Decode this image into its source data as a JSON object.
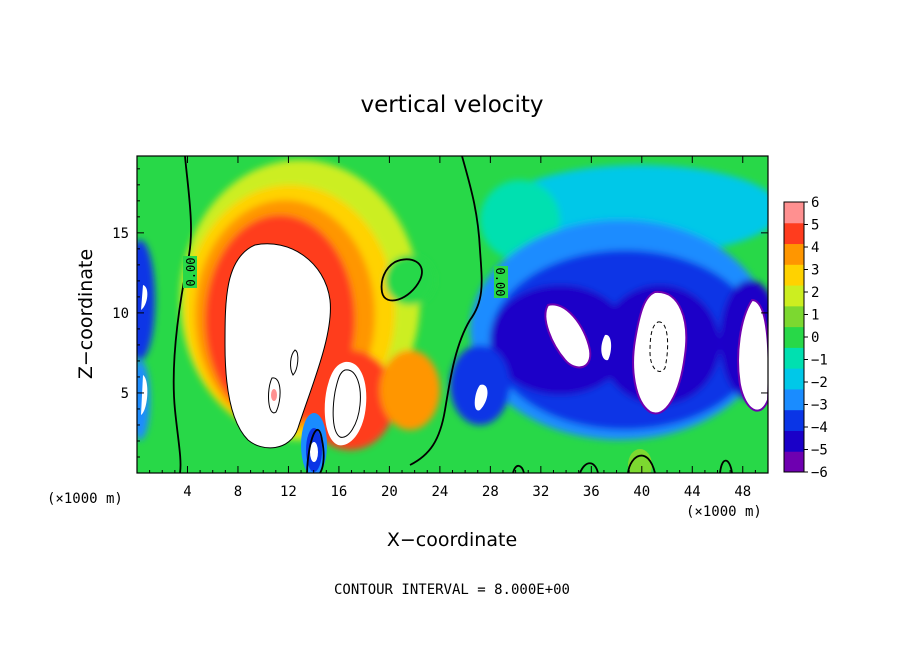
{
  "chart_data": {
    "type": "heatmap",
    "title": "vertical velocity",
    "xlabel": "X−coordinate",
    "ylabel": "Z−coordinate",
    "x_unit_label_left": "(×1000 m)",
    "x_unit_label_right": "(×1000 m)",
    "x_ticks": [
      4,
      8,
      12,
      16,
      20,
      24,
      28,
      32,
      36,
      40,
      44,
      48
    ],
    "y_ticks": [
      5,
      10,
      15
    ],
    "xlim": [
      0,
      50
    ],
    "ylim": [
      0,
      19.8
    ],
    "colorbar": {
      "levels": [
        -6,
        -5,
        -4,
        -3,
        -2,
        -1,
        0,
        1,
        2,
        3,
        4,
        5,
        6
      ],
      "labels": [
        "6",
        "5",
        "4",
        "3",
        "2",
        "1",
        "0",
        "−1",
        "−2",
        "−3",
        "−4",
        "−5",
        "−6"
      ],
      "colors": [
        "#6e00b0",
        "#1a00c8",
        "#0a35e6",
        "#1a8cff",
        "#00c8e8",
        "#00e0b0",
        "#28d848",
        "#7cd830",
        "#ccee20",
        "#ffd200",
        "#ff9600",
        "#ff3c1e",
        "#ff9090"
      ],
      "over_color": "#ffffff",
      "under_color": "#ffffff"
    },
    "contour_labels": [
      "0.00",
      "0.00"
    ],
    "features": [
      {
        "kind": "updraft",
        "x": 11,
        "z": 9.5,
        "w": 6
      },
      {
        "kind": "updraft",
        "x": 16.2,
        "z": 5.5,
        "w": 6
      },
      {
        "kind": "downdraft",
        "x": 14,
        "z": 2,
        "w": -6
      },
      {
        "kind": "downdraft",
        "x": 36,
        "z": 9,
        "w": -6
      },
      {
        "kind": "downdraft",
        "x": 40.5,
        "z": 8,
        "w": -6
      },
      {
        "kind": "downdraft",
        "x": 47.5,
        "z": 8,
        "w": -6
      }
    ],
    "background_value": 0,
    "grid": false,
    "legend": "right colorbar"
  },
  "annotation": "CONTOUR INTERVAL = 8.000E+00"
}
